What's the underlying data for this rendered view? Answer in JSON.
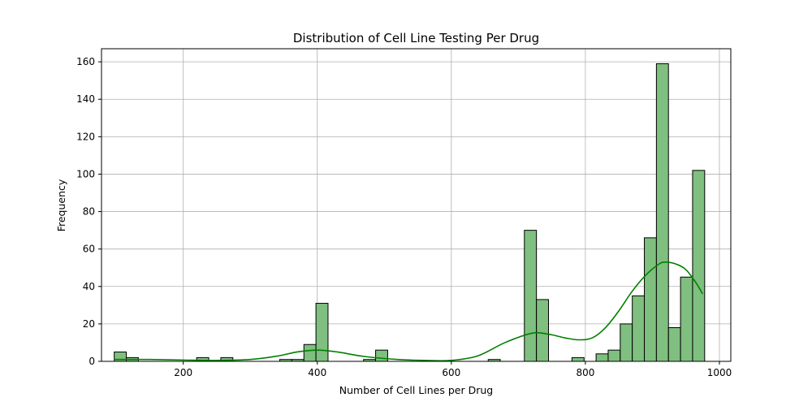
{
  "chart_data": {
    "type": "bar",
    "title": "Distribution of Cell Line Testing Per Drug",
    "xlabel": "Number of Cell Lines per Drug",
    "ylabel": "Frequency",
    "xlim": [
      78,
      1017
    ],
    "ylim": [
      0,
      167
    ],
    "grid": true,
    "xticks": [
      200,
      400,
      600,
      800,
      1000
    ],
    "yticks": [
      0,
      20,
      40,
      60,
      80,
      100,
      120,
      140,
      160
    ],
    "bins": [
      {
        "x0": 97,
        "x1": 115,
        "value": 5
      },
      {
        "x0": 115,
        "x1": 133,
        "value": 2
      },
      {
        "x0": 220,
        "x1": 238,
        "value": 2
      },
      {
        "x0": 256,
        "x1": 274,
        "value": 2
      },
      {
        "x0": 344,
        "x1": 362,
        "value": 1
      },
      {
        "x0": 362,
        "x1": 380,
        "value": 1
      },
      {
        "x0": 380,
        "x1": 398,
        "value": 9
      },
      {
        "x0": 398,
        "x1": 416,
        "value": 31
      },
      {
        "x0": 469,
        "x1": 487,
        "value": 1
      },
      {
        "x0": 487,
        "x1": 505,
        "value": 6
      },
      {
        "x0": 655,
        "x1": 673,
        "value": 1
      },
      {
        "x0": 709,
        "x1": 727,
        "value": 70
      },
      {
        "x0": 727,
        "x1": 745,
        "value": 33
      },
      {
        "x0": 780,
        "x1": 798,
        "value": 2
      },
      {
        "x0": 816,
        "x1": 834,
        "value": 4
      },
      {
        "x0": 834,
        "x1": 852,
        "value": 6
      },
      {
        "x0": 852,
        "x1": 870,
        "value": 20
      },
      {
        "x0": 870,
        "x1": 888,
        "value": 35
      },
      {
        "x0": 888,
        "x1": 906,
        "value": 66
      },
      {
        "x0": 906,
        "x1": 924,
        "value": 159
      },
      {
        "x0": 924,
        "x1": 942,
        "value": 18
      },
      {
        "x0": 942,
        "x1": 960,
        "value": 45
      },
      {
        "x0": 960,
        "x1": 978,
        "value": 102
      }
    ],
    "kde": {
      "x": [
        97,
        150,
        200,
        250,
        300,
        340,
        370,
        400,
        430,
        470,
        520,
        560,
        600,
        640,
        680,
        720,
        745,
        770,
        790,
        810,
        830,
        850,
        870,
        890,
        910,
        920,
        935,
        950,
        965,
        975
      ],
      "y": [
        1.0,
        1.0,
        0.7,
        0.5,
        1.0,
        2.8,
        5.0,
        6.0,
        5.0,
        2.6,
        1.0,
        0.5,
        0.5,
        3.0,
        10.0,
        15.0,
        14.5,
        12.5,
        11.5,
        12.5,
        18.0,
        27.0,
        37.5,
        46.0,
        52.0,
        53.0,
        52.0,
        49.0,
        42.0,
        36.0
      ]
    },
    "colors": {
      "bar_fill": "#7fbf7f",
      "bar_edge": "#000000",
      "kde_line": "#008000",
      "grid": "#b0b0b0"
    }
  }
}
